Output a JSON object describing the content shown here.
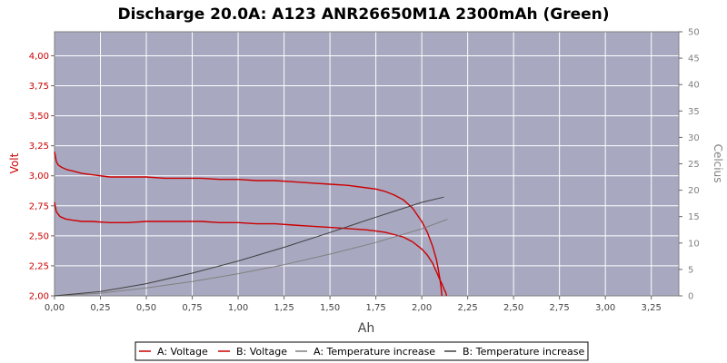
{
  "chart_data": {
    "type": "line",
    "title": "Discharge 20.0A: A123 ANR26650M1A 2300mAh (Green)",
    "xlabel": "Ah",
    "ylabel": "Volt",
    "y2label": "Celcius",
    "xlim": [
      0,
      3.4
    ],
    "ylim": [
      2.0,
      4.2
    ],
    "y2lim": [
      0,
      50
    ],
    "xticks": [
      "0,00",
      "0,25",
      "0,50",
      "0,75",
      "1,00",
      "1,25",
      "1,50",
      "1,75",
      "2,00",
      "2,25",
      "2,50",
      "2,75",
      "3,00",
      "3,25"
    ],
    "yticks": [
      "2,00",
      "2,25",
      "2,50",
      "2,75",
      "3,00",
      "3,25",
      "3,50",
      "3,75",
      "4,00"
    ],
    "y2ticks": [
      "0",
      "5",
      "10",
      "15",
      "20",
      "25",
      "30",
      "35",
      "40",
      "45",
      "50"
    ],
    "grid": true,
    "legend_position": "bottom",
    "colors": {
      "plot_bg": "#a8a8c0",
      "grid": "#ffffff",
      "voltage": "#cc0000",
      "temp_a": "#808080",
      "temp_b": "#404040",
      "left_axis_text": "#cc0000",
      "right_axis_text": "#808080"
    },
    "series": [
      {
        "name": "A: Voltage",
        "axis": "left",
        "color": "#cc0000",
        "x": [
          0.0,
          0.01,
          0.03,
          0.06,
          0.1,
          0.15,
          0.2,
          0.3,
          0.4,
          0.5,
          0.6,
          0.7,
          0.8,
          0.9,
          1.0,
          1.1,
          1.2,
          1.3,
          1.4,
          1.5,
          1.6,
          1.7,
          1.75,
          1.8,
          1.85,
          1.9,
          1.95,
          2.0,
          2.03,
          2.06,
          2.08,
          2.1,
          2.11,
          2.12,
          2.13,
          2.135
        ],
        "y": [
          2.78,
          2.7,
          2.66,
          2.64,
          2.63,
          2.62,
          2.62,
          2.61,
          2.61,
          2.62,
          2.62,
          2.62,
          2.62,
          2.61,
          2.61,
          2.6,
          2.6,
          2.59,
          2.58,
          2.57,
          2.56,
          2.55,
          2.54,
          2.53,
          2.51,
          2.49,
          2.45,
          2.39,
          2.34,
          2.27,
          2.2,
          2.13,
          2.1,
          2.06,
          2.03,
          2.0
        ]
      },
      {
        "name": "B: Voltage",
        "axis": "left",
        "color": "#cc0000",
        "x": [
          0.0,
          0.01,
          0.02,
          0.04,
          0.07,
          0.1,
          0.15,
          0.2,
          0.3,
          0.4,
          0.5,
          0.6,
          0.7,
          0.8,
          0.9,
          1.0,
          1.1,
          1.2,
          1.3,
          1.4,
          1.5,
          1.6,
          1.7,
          1.75,
          1.8,
          1.85,
          1.9,
          1.95,
          2.0,
          2.03,
          2.06,
          2.08,
          2.09,
          2.1,
          2.105,
          2.11
        ],
        "y": [
          3.2,
          3.12,
          3.09,
          3.07,
          3.05,
          3.04,
          3.02,
          3.01,
          2.99,
          2.99,
          2.99,
          2.98,
          2.98,
          2.98,
          2.97,
          2.97,
          2.96,
          2.96,
          2.95,
          2.94,
          2.93,
          2.92,
          2.9,
          2.89,
          2.87,
          2.84,
          2.8,
          2.73,
          2.62,
          2.53,
          2.41,
          2.3,
          2.22,
          2.13,
          2.07,
          2.0
        ]
      },
      {
        "name": "A: Temperature increase",
        "axis": "right",
        "color": "#808080",
        "x": [
          0.0,
          0.25,
          0.5,
          0.75,
          1.0,
          1.25,
          1.5,
          1.75,
          2.0,
          2.14
        ],
        "y": [
          0,
          0.5,
          1.5,
          2.7,
          4.2,
          5.9,
          7.9,
          10.1,
          12.7,
          14.5
        ]
      },
      {
        "name": "B: Temperature increase",
        "axis": "right",
        "color": "#404040",
        "x": [
          0.0,
          0.25,
          0.5,
          0.75,
          1.0,
          1.25,
          1.5,
          1.75,
          2.0,
          2.12
        ],
        "y": [
          0,
          0.8,
          2.3,
          4.3,
          6.6,
          9.2,
          12.0,
          14.9,
          17.7,
          18.7
        ]
      }
    ]
  }
}
